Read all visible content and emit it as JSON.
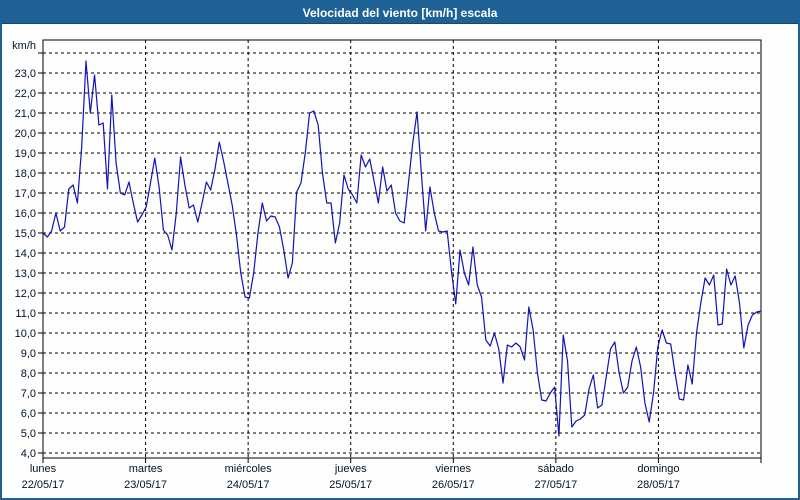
{
  "window": {
    "title": "Velocidad del viento [km/h] escala"
  },
  "colors": {
    "titlebar_bg": "#1e6295",
    "frame_border": "#1e6295",
    "background": "#fdfefd",
    "line": "#1113b7",
    "grid": "#000000",
    "label": "#001428"
  },
  "chart_data": {
    "type": "line",
    "title": "Velocidad del viento [km/h] escala",
    "y_axis_label": "km/h",
    "y_tick_min": 4,
    "y_tick_max": 23,
    "y_tick_step": 1,
    "grid_extra_top_value": 24,
    "y_tick_decimal_separator": ",",
    "ylim": [
      3.75,
      24.65
    ],
    "grid": true,
    "legend": "none",
    "x_days": [
      {
        "name": "lunes",
        "date": "22/05/17"
      },
      {
        "name": "martes",
        "date": "23/05/17"
      },
      {
        "name": "miércoles",
        "date": "24/05/17"
      },
      {
        "name": "jueves",
        "date": "25/05/17"
      },
      {
        "name": "viernes",
        "date": "26/05/17"
      },
      {
        "name": "sábado",
        "date": "27/05/17"
      },
      {
        "name": "domingo",
        "date": "28/05/17"
      }
    ],
    "series": [
      {
        "name": "Velocidad del viento",
        "unit": "km/h",
        "samples_per_day": 24,
        "values": [
          15.0,
          14.8,
          15.1,
          16.0,
          15.1,
          15.3,
          17.2,
          17.4,
          16.5,
          19.3,
          23.6,
          21.0,
          22.9,
          20.4,
          20.5,
          17.2,
          21.9,
          18.5,
          17.0,
          16.9,
          17.55,
          16.5,
          15.55,
          15.9,
          16.3,
          17.5,
          18.75,
          17.3,
          15.15,
          14.9,
          14.15,
          16.0,
          18.8,
          17.4,
          16.25,
          16.4,
          15.55,
          16.5,
          17.55,
          17.15,
          18.2,
          19.55,
          18.6,
          17.5,
          16.4,
          14.9,
          13.0,
          11.8,
          11.75,
          13.0,
          15.0,
          16.5,
          15.6,
          15.85,
          15.8,
          15.3,
          14.15,
          12.75,
          13.5,
          17.05,
          17.5,
          19.0,
          21.0,
          21.1,
          20.4,
          18.0,
          16.5,
          16.5,
          14.5,
          15.5,
          17.9,
          17.2,
          16.9,
          16.5,
          18.9,
          18.3,
          18.7,
          17.6,
          16.5,
          18.3,
          17.1,
          17.4,
          16.0,
          15.6,
          15.5,
          17.5,
          19.5,
          21.05,
          18.0,
          15.1,
          17.3,
          16.0,
          15.1,
          15.05,
          15.1,
          13.1,
          11.45,
          14.15,
          13.0,
          12.4,
          14.3,
          12.4,
          11.8,
          9.65,
          9.35,
          10.0,
          9.2,
          7.5,
          9.4,
          9.3,
          9.5,
          9.3,
          8.65,
          11.3,
          10.15,
          8.0,
          6.65,
          6.6,
          7.0,
          7.3,
          4.85,
          9.9,
          8.6,
          5.3,
          5.6,
          5.7,
          5.9,
          7.2,
          7.9,
          6.25,
          6.4,
          7.8,
          9.2,
          9.55,
          8.0,
          7.0,
          7.3,
          8.6,
          9.3,
          8.3,
          6.5,
          5.55,
          7.0,
          9.3,
          10.15,
          9.5,
          9.45,
          8.0,
          6.7,
          6.65,
          8.4,
          7.45,
          10.0,
          11.5,
          12.75,
          12.4,
          12.9,
          10.4,
          10.45,
          13.2,
          12.4,
          12.85,
          11.5,
          9.25,
          10.4,
          10.9,
          11.05,
          11.1
        ]
      }
    ]
  }
}
